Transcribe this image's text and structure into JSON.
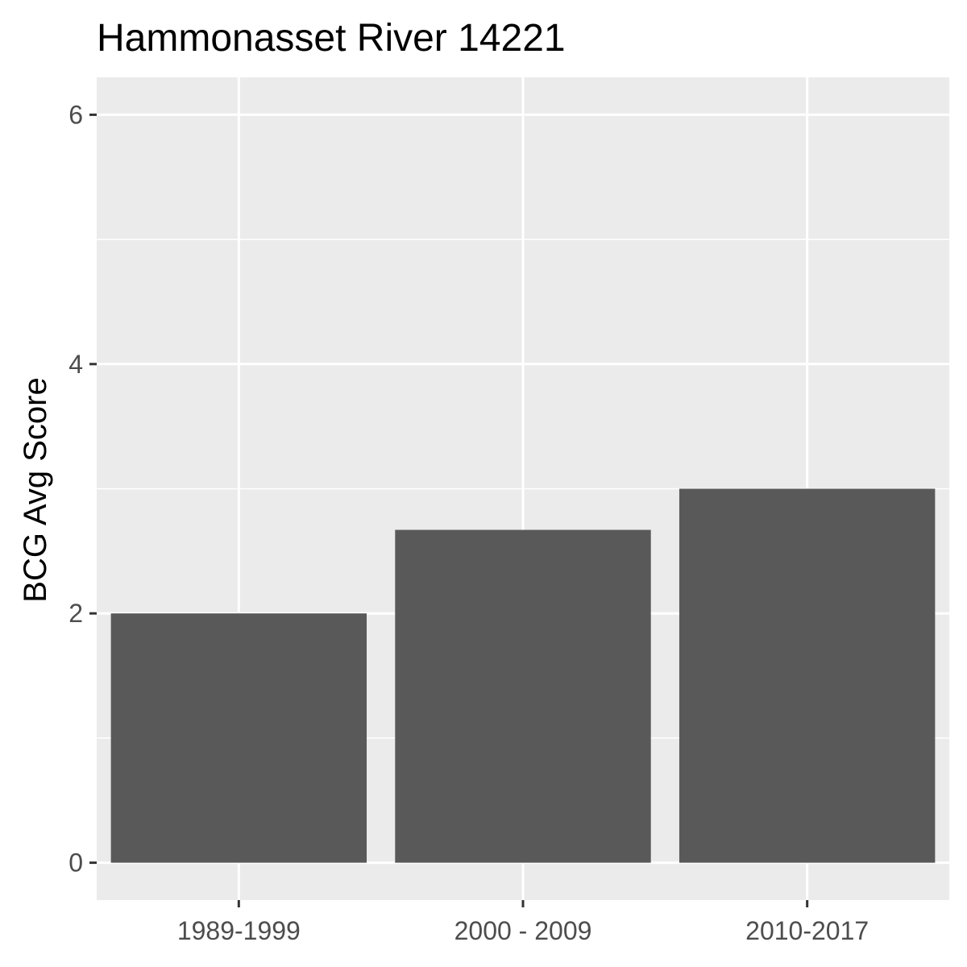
{
  "chart_data": {
    "type": "bar",
    "title": "Hammonasset River 14221",
    "xlabel": "",
    "ylabel": "BCG Avg Score",
    "categories": [
      "1989-1999",
      "2000 - 2009",
      "2010-2017"
    ],
    "values": [
      2.0,
      2.67,
      3.0
    ],
    "ylim": [
      -0.3,
      6.3
    ],
    "yticks": [
      0,
      2,
      4,
      6
    ],
    "ytick_labels": [
      "0",
      "2",
      "4",
      "6"
    ],
    "grid": true,
    "legend": "none",
    "colors": {
      "bar": "#595959",
      "panel": "#ebebeb",
      "grid": "#ffffff",
      "tick": "#333333",
      "tick_label": "#4d4d4d"
    }
  }
}
